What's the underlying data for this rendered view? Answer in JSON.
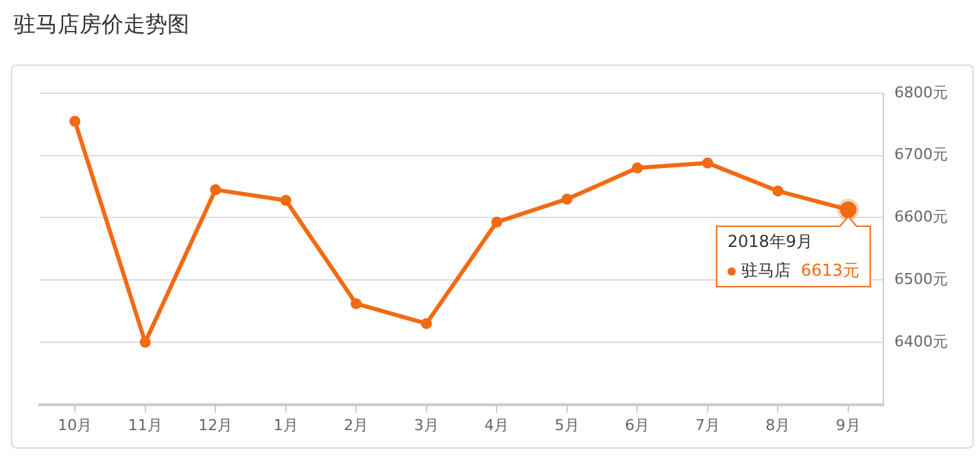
{
  "chart_data": {
    "type": "line",
    "title": "驻马店房价走势图",
    "categories": [
      "10月",
      "11月",
      "12月",
      "1月",
      "2月",
      "3月",
      "4月",
      "5月",
      "6月",
      "7月",
      "8月",
      "9月"
    ],
    "series": [
      {
        "name": "驻马店",
        "color": "#f26a12",
        "values": [
          6755,
          6400,
          6645,
          6628,
          6462,
          6430,
          6593,
          6630,
          6680,
          6688,
          6643,
          6613
        ],
        "value_labels": [
          null,
          null,
          null,
          null,
          null,
          null,
          null,
          null,
          null,
          null,
          null,
          "6613元"
        ]
      }
    ],
    "ylim": [
      6300,
      6800
    ],
    "yticks": [
      {
        "value": 6400,
        "label": "6400元"
      },
      {
        "value": 6500,
        "label": "6500元"
      },
      {
        "value": 6600,
        "label": "6600元"
      },
      {
        "value": 6700,
        "label": "6700元"
      },
      {
        "value": 6800,
        "label": "6800元"
      }
    ],
    "annotations": [
      {
        "text": "2018年9月",
        "x": "9月",
        "y": 6613
      }
    ],
    "grid": "y",
    "legend": "right",
    "marker": "circle",
    "line_style": "solid"
  }
}
